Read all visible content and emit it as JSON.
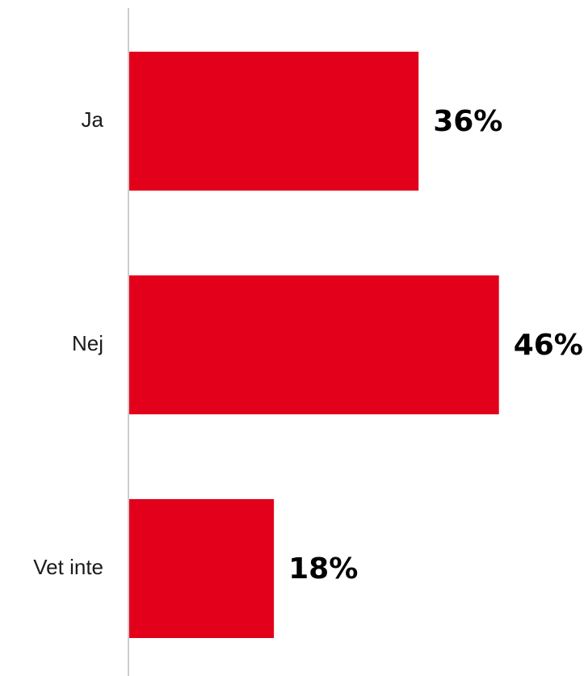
{
  "chart_data": {
    "type": "bar",
    "orientation": "horizontal",
    "categories": [
      "Ja",
      "Nej",
      "Vet inte"
    ],
    "values": [
      36,
      46,
      18
    ],
    "value_labels": [
      "36%",
      "46%",
      "18%"
    ],
    "unit": "%",
    "xlim": [
      0,
      56
    ],
    "grid": false,
    "bar_color": "#e3001b",
    "axis_color": "#cccccc"
  }
}
